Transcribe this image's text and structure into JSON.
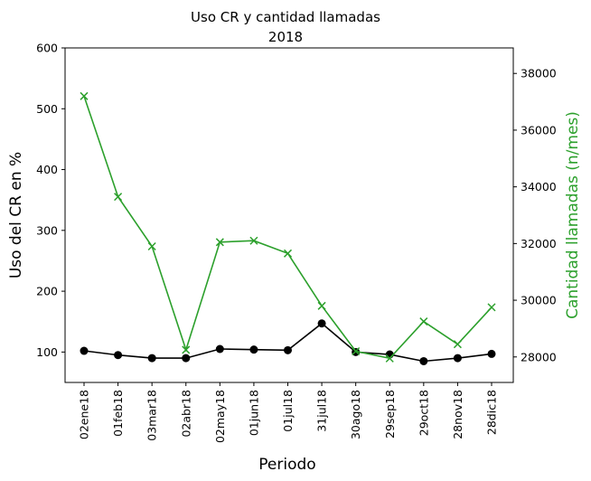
{
  "chart_data": {
    "type": "line",
    "title": "Uso CR y cantidad llamadas",
    "subtitle": "2018",
    "xlabel": "Periodo",
    "ylabel": "Uso del CR en %",
    "y2label": "Cantidad llamadas (n/mes)",
    "categories": [
      "02ene18",
      "01feb18",
      "03mar18",
      "02abr18",
      "02may18",
      "01jun18",
      "01jul18",
      "31jul18",
      "30ago18",
      "29sep18",
      "29oct18",
      "28nov18",
      "28dic18"
    ],
    "ylim": [
      50,
      600
    ],
    "yticks": [
      100,
      200,
      300,
      400,
      500,
      600
    ],
    "y2lim": [
      27100,
      38900
    ],
    "y2ticks": [
      28000,
      30000,
      32000,
      34000,
      36000,
      38000
    ],
    "grid": false,
    "colors": {
      "y2": "#2ca02c",
      "y1": "#000000"
    },
    "series": [
      {
        "axis": "left",
        "marker": "circle",
        "color": "#000000",
        "values": [
          102,
          95,
          90,
          90,
          105,
          104,
          103,
          147,
          100,
          96,
          85,
          90,
          97
        ]
      },
      {
        "axis": "right",
        "marker": "x",
        "color": "#2ca02c",
        "values": [
          37200,
          33650,
          31900,
          28250,
          32050,
          32100,
          31650,
          29800,
          28200,
          27950,
          29250,
          28450,
          29750
        ]
      }
    ]
  }
}
